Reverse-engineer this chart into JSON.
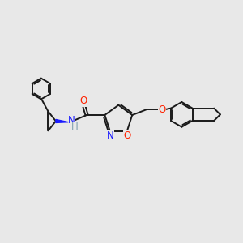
{
  "bg_color": "#e8e8e8",
  "bond_color": "#1a1a1a",
  "n_color": "#1a1aff",
  "o_color": "#ff2200",
  "h_color": "#7fa0b0",
  "line_width": 1.4,
  "font_size": 8.5,
  "fig_size": [
    3.0,
    3.0
  ],
  "dpi": 100,
  "xlim": [
    0,
    12
  ],
  "ylim": [
    0,
    10
  ]
}
